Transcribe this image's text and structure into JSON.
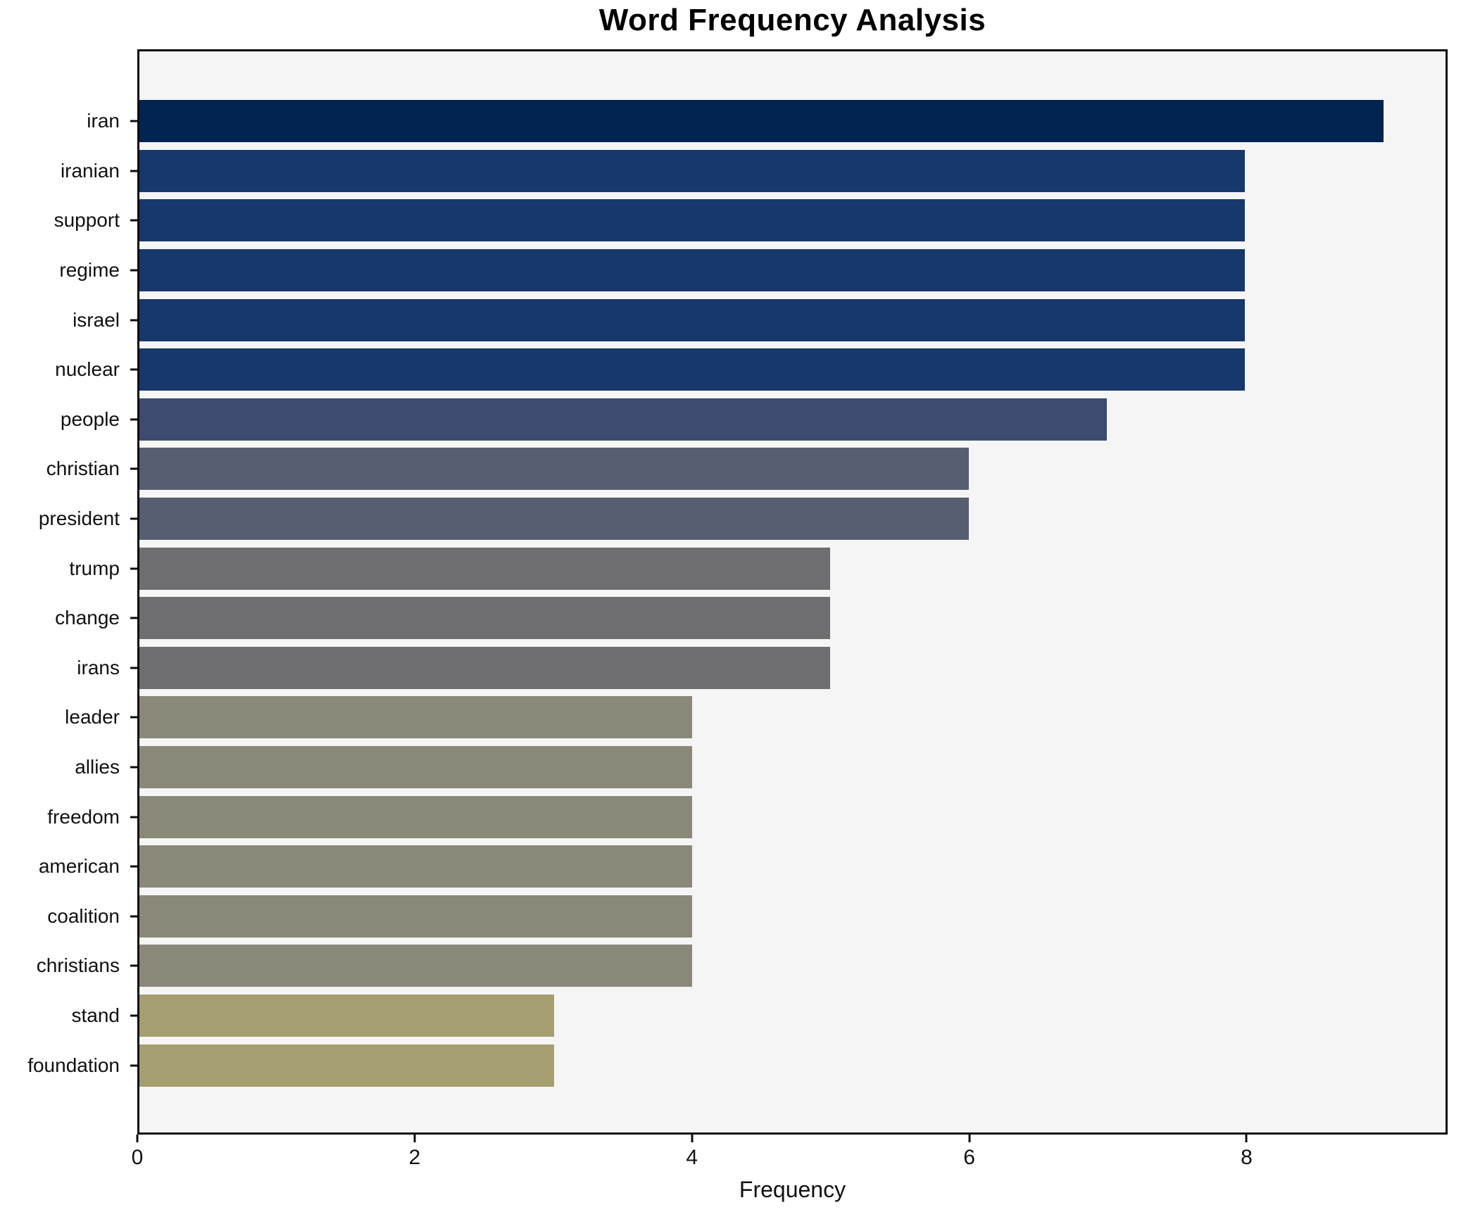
{
  "title": "Word Frequency Analysis",
  "chart_data": {
    "type": "bar",
    "orientation": "horizontal",
    "title": "Word Frequency Analysis",
    "xlabel": "Frequency",
    "ylabel": "",
    "xlim": [
      0,
      9.45
    ],
    "xticks": [
      "0",
      "2",
      "4",
      "6",
      "8"
    ],
    "xtick_values": [
      0,
      2,
      4,
      6,
      8
    ],
    "grid": false,
    "legend": "none",
    "categories": [
      "iran",
      "iranian",
      "support",
      "regime",
      "israel",
      "nuclear",
      "people",
      "christian",
      "president",
      "trump",
      "change",
      "irans",
      "leader",
      "allies",
      "freedom",
      "american",
      "coalition",
      "christians",
      "stand",
      "foundation"
    ],
    "values": [
      9,
      8,
      8,
      8,
      8,
      8,
      7,
      6,
      6,
      5,
      5,
      5,
      4,
      4,
      4,
      4,
      4,
      4,
      3,
      3
    ],
    "bar_colors": [
      "#00234f",
      "#18386c",
      "#18386c",
      "#18386c",
      "#18386c",
      "#18386c",
      "#3d4b6f",
      "#565e71",
      "#565e71",
      "#6e6e70",
      "#6e6e70",
      "#6e6e70",
      "#8a8878",
      "#8a8878",
      "#8a8878",
      "#8a8878",
      "#8a8878",
      "#8a8878",
      "#a59e70",
      "#a59e70"
    ],
    "colors": {
      "figure_background": "#ffffff",
      "plot_background": "#f5f5f6",
      "spine": "#0c0c0c",
      "text": "#111111"
    }
  }
}
